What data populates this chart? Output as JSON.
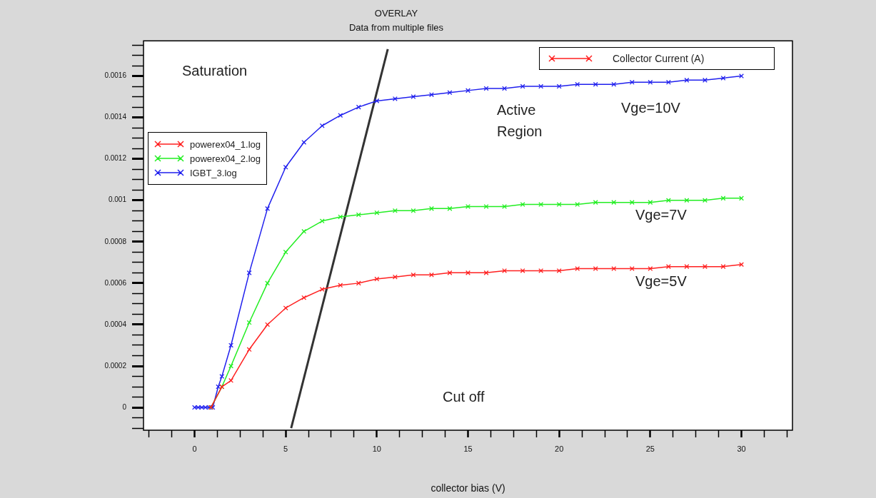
{
  "chart_data": {
    "type": "line",
    "title": "OVERLAY",
    "subtitle": "Data from multiple files",
    "xlabel": "collector bias (V)",
    "ylabel": "Collector Current (A)",
    "marker": "cross",
    "legend": "left",
    "xlim": [
      -2.8,
      32.8
    ],
    "xticks": [
      {
        "value": -2.5,
        "label": null
      },
      {
        "value": -1.25,
        "label": null
      },
      0,
      {
        "value": 1.25,
        "label": null
      },
      {
        "value": 2.5,
        "label": null
      },
      {
        "value": 3.75,
        "label": null
      },
      5,
      {
        "value": 6.25,
        "label": null
      },
      {
        "value": 7.5,
        "label": null
      },
      {
        "value": 8.75,
        "label": null
      },
      10,
      {
        "value": 11.25,
        "label": null
      },
      {
        "value": 12.5,
        "label": null
      },
      {
        "value": 13.75,
        "label": null
      },
      15,
      {
        "value": 16.25,
        "label": null
      },
      {
        "value": 17.5,
        "label": null
      },
      {
        "value": 18.75,
        "label": null
      },
      20,
      {
        "value": 21.25,
        "label": null
      },
      {
        "value": 22.5,
        "label": null
      },
      {
        "value": 23.75,
        "label": null
      },
      25,
      {
        "value": 26.25,
        "label": null
      },
      {
        "value": 27.5,
        "label": null
      },
      {
        "value": 28.75,
        "label": null
      },
      30,
      {
        "value": 31.25,
        "label": null
      },
      {
        "value": 32.5,
        "label": null
      }
    ],
    "ylim": [
      -0.00011,
      0.00177
    ],
    "yticks": [
      {
        "value": -0.0001,
        "label": null
      },
      {
        "value": -5e-05,
        "label": null
      },
      0,
      {
        "value": 5e-05,
        "label": null
      },
      {
        "value": 0.0001,
        "label": null
      },
      {
        "value": 0.00015,
        "label": null
      },
      0.0002,
      {
        "value": 0.00025,
        "label": null
      },
      {
        "value": 0.0003,
        "label": null
      },
      {
        "value": 0.00035,
        "label": null
      },
      0.0004,
      {
        "value": 0.00045,
        "label": null
      },
      {
        "value": 0.0005,
        "label": null
      },
      {
        "value": 0.00055,
        "label": null
      },
      0.0006,
      {
        "value": 0.00065,
        "label": null
      },
      {
        "value": 0.0007,
        "label": null
      },
      {
        "value": 0.00075,
        "label": null
      },
      0.0008,
      {
        "value": 0.00085,
        "label": null
      },
      {
        "value": 0.0009,
        "label": null
      },
      {
        "value": 0.00095,
        "label": null
      },
      0.001,
      {
        "value": 0.00105,
        "label": null
      },
      {
        "value": 0.0011,
        "label": null
      },
      {
        "value": 0.00115,
        "label": null
      },
      0.0012,
      {
        "value": 0.00125,
        "label": null
      },
      {
        "value": 0.0013,
        "label": null
      },
      {
        "value": 0.00135,
        "label": null
      },
      0.0014,
      {
        "value": 0.00145,
        "label": null
      },
      {
        "value": 0.0015,
        "label": null
      },
      {
        "value": 0.00155,
        "label": null
      },
      0.0016,
      {
        "value": 0.00165,
        "label": null
      },
      {
        "value": 0.0017,
        "label": null
      },
      {
        "value": 0.00175,
        "label": null
      }
    ],
    "series": [
      {
        "name": "powerex04_1.log",
        "color": "#ff2020",
        "x": [
          0.9,
          1.5,
          2,
          3,
          4,
          5,
          6,
          7,
          8,
          9,
          10,
          11,
          12,
          13,
          14,
          15,
          16,
          17,
          18,
          19,
          20,
          21,
          22,
          23,
          24,
          25,
          26,
          27,
          28,
          29,
          30
        ],
        "values": [
          0,
          0.0001,
          0.00013,
          0.00028,
          0.0004,
          0.00048,
          0.00053,
          0.00057,
          0.00059,
          0.0006,
          0.00062,
          0.00063,
          0.00064,
          0.00064,
          0.00065,
          0.00065,
          0.00065,
          0.00066,
          0.00066,
          0.00066,
          0.00066,
          0.00067,
          0.00067,
          0.00067,
          0.00067,
          0.00067,
          0.00068,
          0.00068,
          0.00068,
          0.00068,
          0.00069
        ]
      },
      {
        "name": "powerex04_2.log",
        "color": "#22ee22",
        "x": [
          0.9,
          1.5,
          2,
          3,
          4,
          5,
          6,
          7,
          8,
          9,
          10,
          11,
          12,
          13,
          14,
          15,
          16,
          17,
          18,
          19,
          20,
          21,
          22,
          23,
          24,
          25,
          26,
          27,
          28,
          29,
          30
        ],
        "values": [
          0,
          0.0001,
          0.0002,
          0.00041,
          0.0006,
          0.00075,
          0.00085,
          0.0009,
          0.00092,
          0.00093,
          0.00094,
          0.00095,
          0.00095,
          0.00096,
          0.00096,
          0.00097,
          0.00097,
          0.00097,
          0.00098,
          0.00098,
          0.00098,
          0.00098,
          0.00099,
          0.00099,
          0.00099,
          0.00099,
          0.001,
          0.001,
          0.001,
          0.00101,
          0.00101
        ]
      },
      {
        "name": "IGBT_3.log",
        "color": "#2020ee",
        "x": [
          0,
          0.2,
          0.4,
          0.6,
          0.8,
          1.0,
          1.3,
          1.5,
          2,
          3,
          4,
          5,
          6,
          7,
          8,
          9,
          10,
          11,
          12,
          13,
          14,
          15,
          16,
          17,
          18,
          19,
          20,
          21,
          22,
          23,
          24,
          25,
          26,
          27,
          28,
          29,
          30
        ],
        "values": [
          0,
          0,
          0,
          0,
          0,
          0,
          0.0001,
          0.00015,
          0.0003,
          0.00065,
          0.00096,
          0.00116,
          0.00128,
          0.00136,
          0.00141,
          0.00145,
          0.00148,
          0.00149,
          0.0015,
          0.00151,
          0.00152,
          0.00153,
          0.00154,
          0.00154,
          0.00155,
          0.00155,
          0.00155,
          0.00156,
          0.00156,
          0.00156,
          0.00157,
          0.00157,
          0.00157,
          0.00158,
          0.00158,
          0.00159,
          0.0016
        ]
      },
      {
        "color": "#333333",
        "marker": "none",
        "x": [
          5.3,
          10.6
        ],
        "values": [
          -0.0001,
          0.00173
        ]
      }
    ],
    "annotations": [
      "Saturation",
      "Active Region",
      "Cut off",
      "Vge=10V",
      "Vge=7V",
      "Vge=5V"
    ]
  }
}
